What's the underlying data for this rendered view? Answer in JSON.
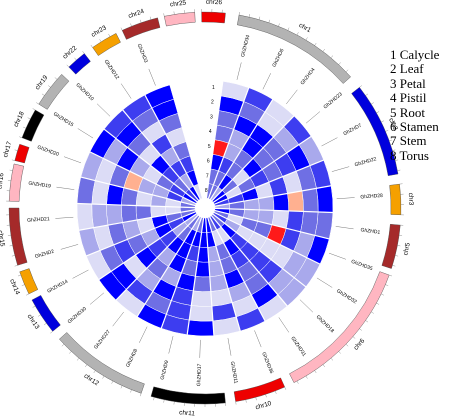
{
  "legend": [
    {
      "num": "1",
      "label": "Calycle"
    },
    {
      "num": "2",
      "label": "Leaf"
    },
    {
      "num": "3",
      "label": "Petal"
    },
    {
      "num": "4",
      "label": "Pistil"
    },
    {
      "num": "5",
      "label": "Root"
    },
    {
      "num": "6",
      "label": "Stamen"
    },
    {
      "num": "7",
      "label": "Stem"
    },
    {
      "num": "8",
      "label": "Torus"
    }
  ],
  "ring_numbers": [
    "1",
    "2",
    "3",
    "4",
    "5",
    "6",
    "7",
    "8"
  ],
  "chromosomes": [
    {
      "name": "chr1",
      "color": "#b3b3b3"
    },
    {
      "name": "chr2",
      "color": "#0000dd"
    },
    {
      "name": "chr3",
      "color": "#f5a000"
    },
    {
      "name": "chr5",
      "color": "#a52a2a"
    },
    {
      "name": "chr6",
      "color": "#ffb6c1"
    },
    {
      "name": "chr10",
      "color": "#ee0000"
    },
    {
      "name": "chr11",
      "color": "#000000"
    },
    {
      "name": "chr12",
      "color": "#b3b3b3"
    },
    {
      "name": "chr13",
      "color": "#0000dd"
    },
    {
      "name": "chr14",
      "color": "#f5a000"
    },
    {
      "name": "chr15",
      "color": "#a52a2a"
    },
    {
      "name": "chr16",
      "color": "#ffb6c1"
    },
    {
      "name": "chr17",
      "color": "#ee0000"
    },
    {
      "name": "chr18",
      "color": "#000000"
    },
    {
      "name": "chr19",
      "color": "#b3b3b3"
    },
    {
      "name": "chr22",
      "color": "#0000dd"
    },
    {
      "name": "chr23",
      "color": "#f5a000"
    },
    {
      "name": "chr24",
      "color": "#a52a2a"
    },
    {
      "name": "chr25",
      "color": "#ffb6c1"
    },
    {
      "name": "chr26",
      "color": "#ee0000"
    }
  ],
  "genes": [
    {
      "name": "GhZHD34"
    },
    {
      "name": "GhZHD6"
    },
    {
      "name": "GhZHD4"
    },
    {
      "name": "GhZHD23"
    },
    {
      "name": "GhZHD7"
    },
    {
      "name": "GhZHD22"
    },
    {
      "name": "GhZHD28"
    },
    {
      "name": "GhZHD1"
    },
    {
      "name": "GhZHD35"
    },
    {
      "name": "GhZHD32"
    },
    {
      "name": "GhZHD18"
    },
    {
      "name": "GhZHD31"
    },
    {
      "name": "GhZHD36"
    },
    {
      "name": "GhZHD11"
    },
    {
      "name": "GhZHD17"
    },
    {
      "name": "GhZHD9"
    },
    {
      "name": "GhZHD8"
    },
    {
      "name": "GhZHD27"
    },
    {
      "name": "GhZHD30"
    },
    {
      "name": "GhZHD14"
    },
    {
      "name": "GhZHD2"
    },
    {
      "name": "GhZHD21"
    },
    {
      "name": "GhZHD19"
    },
    {
      "name": "GhZHD20"
    },
    {
      "name": "GhZHD15"
    },
    {
      "name": "GhZHD10"
    },
    {
      "name": "GhZHD12"
    },
    {
      "name": "GhZHD3"
    }
  ],
  "heatmap": {
    "colors": {
      "very_high": "#0000ff",
      "high": "#3d3df0",
      "medium": "#6f6fe4",
      "low": "#a9a9ec",
      "very_low": "#dcdcf6",
      "accent_red": "#ff1a1a",
      "accent_orange": "#ffb090"
    }
  }
}
